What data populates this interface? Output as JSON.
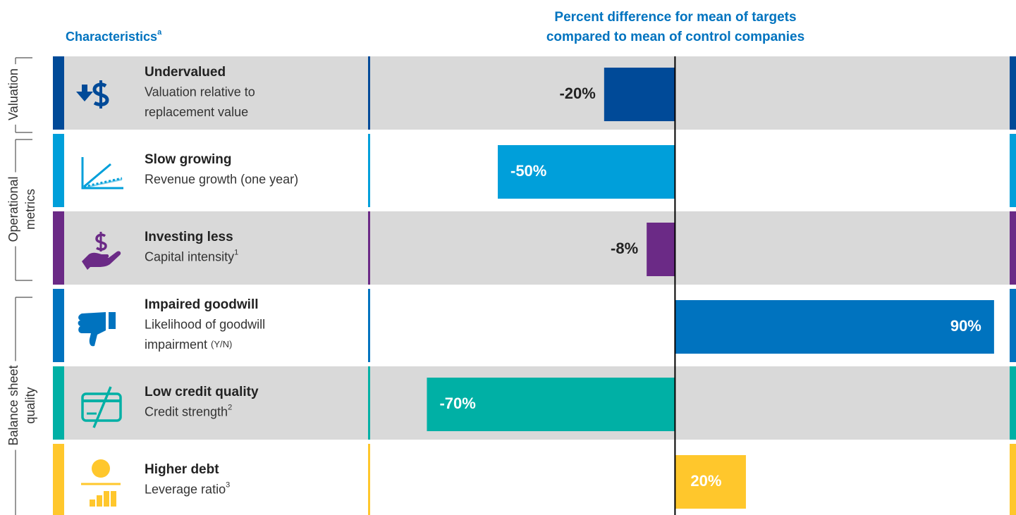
{
  "chart_data": {
    "type": "bar",
    "orientation": "horizontal",
    "title": [
      "Percent difference for mean of targets",
      "compared to mean of control companies"
    ],
    "column_header": {
      "text": "Characteristics",
      "note": "a"
    },
    "groups": [
      {
        "lines": [
          "Valuation"
        ]
      },
      {
        "lines": [
          "Operational",
          "metrics"
        ]
      },
      {
        "lines": [
          "Balance sheet",
          "quality"
        ]
      }
    ],
    "categories": [
      "Undervalued",
      "Slow growing",
      "Investing less",
      "Impaired goodwill",
      "Low credit quality",
      "Higher debt"
    ],
    "descriptions": [
      {
        "lines": [
          "Valuation relative to",
          "replacement value"
        ]
      },
      {
        "lines": [
          "Revenue growth (one year)"
        ]
      },
      {
        "lines": [
          "Capital intensity"
        ],
        "note": "1"
      },
      {
        "lines": [
          "Likelihood of goodwill",
          "impairment"
        ],
        "suffix": "(Y/N)"
      },
      {
        "lines": [
          "Credit strength"
        ],
        "note": "2"
      },
      {
        "lines": [
          "Leverage ratio"
        ],
        "note": "3"
      }
    ],
    "values": [
      -20,
      -50,
      -8,
      90,
      -70,
      20
    ],
    "value_labels": [
      "-20%",
      "-50%",
      "-8%",
      "90%",
      "-70%",
      "20%"
    ],
    "colors": [
      "#004a98",
      "#009fda",
      "#6b2a86",
      "#0073bf",
      "#00b0a5",
      "#ffc72c"
    ],
    "xlim": [
      -86,
      94
    ]
  }
}
